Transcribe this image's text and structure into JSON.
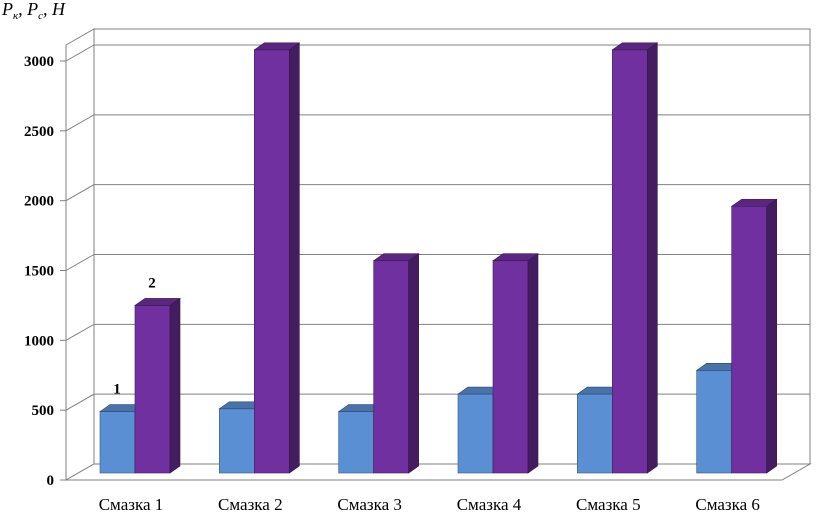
{
  "chart_data": {
    "type": "bar",
    "title": "",
    "ylabel": "Pк, Pс, Н",
    "xlabel": "",
    "categories": [
      "Смазка 1",
      "Смазка 2",
      "Смазка 3",
      "Смазка 4",
      "Смазка 5",
      "Смазка 6"
    ],
    "series": [
      {
        "name": "1",
        "values": [
          490,
          510,
          490,
          615,
          615,
          785
        ],
        "color": "#5b8fd4"
      },
      {
        "name": "2",
        "values": [
          1250,
          3080,
          1570,
          1570,
          3080,
          1960
        ],
        "color": "#7030a0"
      }
    ],
    "ylim": [
      0,
      3000
    ],
    "yticks": [
      0,
      500,
      1000,
      1500,
      2000,
      2500,
      3000
    ],
    "grid": true,
    "legend": "none",
    "three_d": true
  }
}
